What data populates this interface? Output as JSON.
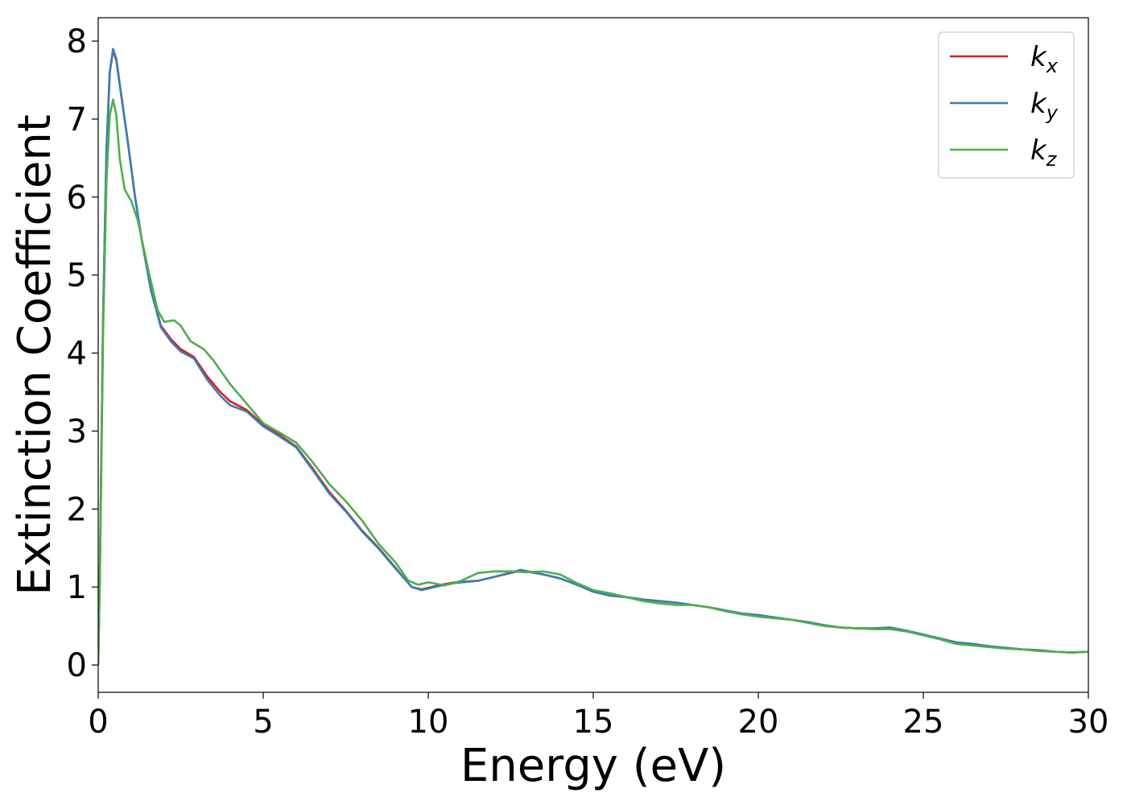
{
  "chart_data": {
    "type": "line",
    "title": "",
    "xlabel": "Energy (eV)",
    "ylabel": "Extinction Coefficient",
    "xlim": [
      0,
      30
    ],
    "ylim": [
      -0.35,
      8.3
    ],
    "xticks": [
      0,
      5,
      10,
      15,
      20,
      25,
      30
    ],
    "yticks": [
      0,
      1,
      2,
      3,
      4,
      5,
      6,
      7,
      8
    ],
    "grid": false,
    "legend_position": "top-right",
    "series": [
      {
        "name": "k",
        "subscript": "x",
        "color": "#e41a1c",
        "points": [
          [
            0,
            0
          ],
          [
            0.05,
            1.2
          ],
          [
            0.15,
            4.5
          ],
          [
            0.25,
            6.6
          ],
          [
            0.35,
            7.6
          ],
          [
            0.45,
            7.88
          ],
          [
            0.55,
            7.75
          ],
          [
            0.7,
            7.3
          ],
          [
            0.9,
            6.7
          ],
          [
            1.1,
            6.05
          ],
          [
            1.3,
            5.5
          ],
          [
            1.6,
            4.8
          ],
          [
            1.9,
            4.35
          ],
          [
            2.2,
            4.18
          ],
          [
            2.5,
            4.05
          ],
          [
            2.9,
            3.95
          ],
          [
            3.3,
            3.7
          ],
          [
            3.7,
            3.5
          ],
          [
            4.0,
            3.38
          ],
          [
            4.5,
            3.27
          ],
          [
            5.0,
            3.08
          ],
          [
            5.5,
            2.95
          ],
          [
            6.0,
            2.8
          ],
          [
            6.5,
            2.52
          ],
          [
            7.0,
            2.22
          ],
          [
            7.5,
            1.98
          ],
          [
            8.0,
            1.72
          ],
          [
            8.5,
            1.5
          ],
          [
            9.0,
            1.25
          ],
          [
            9.5,
            1.0
          ],
          [
            9.8,
            0.97
          ],
          [
            10.3,
            1.02
          ],
          [
            10.8,
            1.06
          ],
          [
            11.5,
            1.08
          ],
          [
            12.0,
            1.13
          ],
          [
            12.8,
            1.21
          ],
          [
            13.5,
            1.16
          ],
          [
            14.0,
            1.11
          ],
          [
            14.5,
            1.03
          ],
          [
            15.0,
            0.94
          ],
          [
            15.5,
            0.89
          ],
          [
            16.0,
            0.87
          ],
          [
            16.5,
            0.84
          ],
          [
            17.0,
            0.82
          ],
          [
            17.5,
            0.8
          ],
          [
            18.0,
            0.77
          ],
          [
            18.5,
            0.74
          ],
          [
            19.0,
            0.7
          ],
          [
            19.5,
            0.66
          ],
          [
            20.0,
            0.64
          ],
          [
            20.5,
            0.61
          ],
          [
            21.0,
            0.58
          ],
          [
            21.5,
            0.55
          ],
          [
            22.0,
            0.51
          ],
          [
            22.5,
            0.48
          ],
          [
            23.0,
            0.47
          ],
          [
            23.5,
            0.47
          ],
          [
            24.0,
            0.48
          ],
          [
            24.5,
            0.44
          ],
          [
            25.0,
            0.39
          ],
          [
            25.5,
            0.34
          ],
          [
            26.0,
            0.29
          ],
          [
            26.5,
            0.27
          ],
          [
            27.0,
            0.24
          ],
          [
            27.5,
            0.22
          ],
          [
            28.0,
            0.2
          ],
          [
            28.5,
            0.19
          ],
          [
            29.0,
            0.17
          ],
          [
            29.5,
            0.16
          ],
          [
            30.0,
            0.17
          ]
        ]
      },
      {
        "name": "k",
        "subscript": "y",
        "color": "#377eb8",
        "points": [
          [
            0,
            0
          ],
          [
            0.05,
            1.2
          ],
          [
            0.15,
            4.5
          ],
          [
            0.25,
            6.6
          ],
          [
            0.35,
            7.6
          ],
          [
            0.45,
            7.9
          ],
          [
            0.55,
            7.77
          ],
          [
            0.7,
            7.3
          ],
          [
            0.9,
            6.7
          ],
          [
            1.1,
            6.05
          ],
          [
            1.3,
            5.5
          ],
          [
            1.6,
            4.8
          ],
          [
            1.9,
            4.33
          ],
          [
            2.2,
            4.15
          ],
          [
            2.5,
            4.02
          ],
          [
            2.9,
            3.93
          ],
          [
            3.3,
            3.66
          ],
          [
            3.7,
            3.45
          ],
          [
            4.0,
            3.33
          ],
          [
            4.5,
            3.25
          ],
          [
            5.0,
            3.06
          ],
          [
            5.5,
            2.93
          ],
          [
            6.0,
            2.79
          ],
          [
            6.5,
            2.5
          ],
          [
            7.0,
            2.2
          ],
          [
            7.5,
            1.97
          ],
          [
            8.0,
            1.71
          ],
          [
            8.5,
            1.49
          ],
          [
            9.0,
            1.24
          ],
          [
            9.5,
            1.0
          ],
          [
            9.8,
            0.96
          ],
          [
            10.3,
            1.01
          ],
          [
            10.8,
            1.05
          ],
          [
            11.5,
            1.08
          ],
          [
            12.0,
            1.13
          ],
          [
            12.8,
            1.22
          ],
          [
            13.5,
            1.16
          ],
          [
            14.0,
            1.11
          ],
          [
            14.5,
            1.03
          ],
          [
            15.0,
            0.94
          ],
          [
            15.5,
            0.89
          ],
          [
            16.0,
            0.87
          ],
          [
            16.5,
            0.84
          ],
          [
            17.0,
            0.82
          ],
          [
            17.5,
            0.8
          ],
          [
            18.0,
            0.77
          ],
          [
            18.5,
            0.74
          ],
          [
            19.0,
            0.7
          ],
          [
            19.5,
            0.66
          ],
          [
            20.0,
            0.64
          ],
          [
            20.5,
            0.61
          ],
          [
            21.0,
            0.58
          ],
          [
            21.5,
            0.55
          ],
          [
            22.0,
            0.51
          ],
          [
            22.5,
            0.48
          ],
          [
            23.0,
            0.47
          ],
          [
            23.5,
            0.47
          ],
          [
            24.0,
            0.48
          ],
          [
            24.5,
            0.44
          ],
          [
            25.0,
            0.39
          ],
          [
            25.5,
            0.34
          ],
          [
            26.0,
            0.29
          ],
          [
            26.5,
            0.27
          ],
          [
            27.0,
            0.24
          ],
          [
            27.5,
            0.22
          ],
          [
            28.0,
            0.2
          ],
          [
            28.5,
            0.19
          ],
          [
            29.0,
            0.17
          ],
          [
            29.5,
            0.16
          ],
          [
            30.0,
            0.17
          ]
        ]
      },
      {
        "name": "k",
        "subscript": "z",
        "color": "#4daf4a",
        "points": [
          [
            0,
            0
          ],
          [
            0.05,
            1.1
          ],
          [
            0.15,
            4.3
          ],
          [
            0.25,
            6.2
          ],
          [
            0.35,
            7.05
          ],
          [
            0.45,
            7.25
          ],
          [
            0.55,
            7.05
          ],
          [
            0.65,
            6.5
          ],
          [
            0.8,
            6.1
          ],
          [
            1.0,
            5.95
          ],
          [
            1.2,
            5.7
          ],
          [
            1.5,
            5.1
          ],
          [
            1.8,
            4.55
          ],
          [
            2.0,
            4.4
          ],
          [
            2.3,
            4.42
          ],
          [
            2.5,
            4.35
          ],
          [
            2.8,
            4.15
          ],
          [
            3.2,
            4.05
          ],
          [
            3.5,
            3.9
          ],
          [
            4.0,
            3.6
          ],
          [
            4.5,
            3.35
          ],
          [
            5.0,
            3.1
          ],
          [
            5.5,
            2.98
          ],
          [
            6.0,
            2.85
          ],
          [
            6.5,
            2.6
          ],
          [
            7.0,
            2.32
          ],
          [
            7.5,
            2.1
          ],
          [
            8.0,
            1.85
          ],
          [
            8.5,
            1.55
          ],
          [
            9.0,
            1.32
          ],
          [
            9.4,
            1.08
          ],
          [
            9.7,
            1.03
          ],
          [
            10.0,
            1.06
          ],
          [
            10.5,
            1.02
          ],
          [
            11.0,
            1.08
          ],
          [
            11.5,
            1.18
          ],
          [
            12.0,
            1.2
          ],
          [
            12.5,
            1.2
          ],
          [
            13.0,
            1.19
          ],
          [
            13.5,
            1.2
          ],
          [
            14.0,
            1.16
          ],
          [
            14.5,
            1.05
          ],
          [
            15.0,
            0.96
          ],
          [
            15.5,
            0.92
          ],
          [
            16.0,
            0.87
          ],
          [
            16.5,
            0.82
          ],
          [
            17.0,
            0.79
          ],
          [
            17.5,
            0.77
          ],
          [
            18.0,
            0.77
          ],
          [
            18.5,
            0.74
          ],
          [
            19.0,
            0.69
          ],
          [
            19.5,
            0.65
          ],
          [
            20.0,
            0.62
          ],
          [
            20.5,
            0.6
          ],
          [
            21.0,
            0.58
          ],
          [
            21.5,
            0.54
          ],
          [
            22.0,
            0.5
          ],
          [
            22.5,
            0.48
          ],
          [
            23.0,
            0.47
          ],
          [
            23.5,
            0.46
          ],
          [
            24.0,
            0.46
          ],
          [
            24.5,
            0.43
          ],
          [
            25.0,
            0.38
          ],
          [
            25.5,
            0.33
          ],
          [
            26.0,
            0.27
          ],
          [
            26.5,
            0.25
          ],
          [
            27.0,
            0.23
          ],
          [
            27.5,
            0.21
          ],
          [
            28.0,
            0.2
          ],
          [
            28.5,
            0.18
          ],
          [
            29.0,
            0.17
          ],
          [
            29.5,
            0.16
          ],
          [
            30.0,
            0.17
          ]
        ]
      }
    ]
  }
}
